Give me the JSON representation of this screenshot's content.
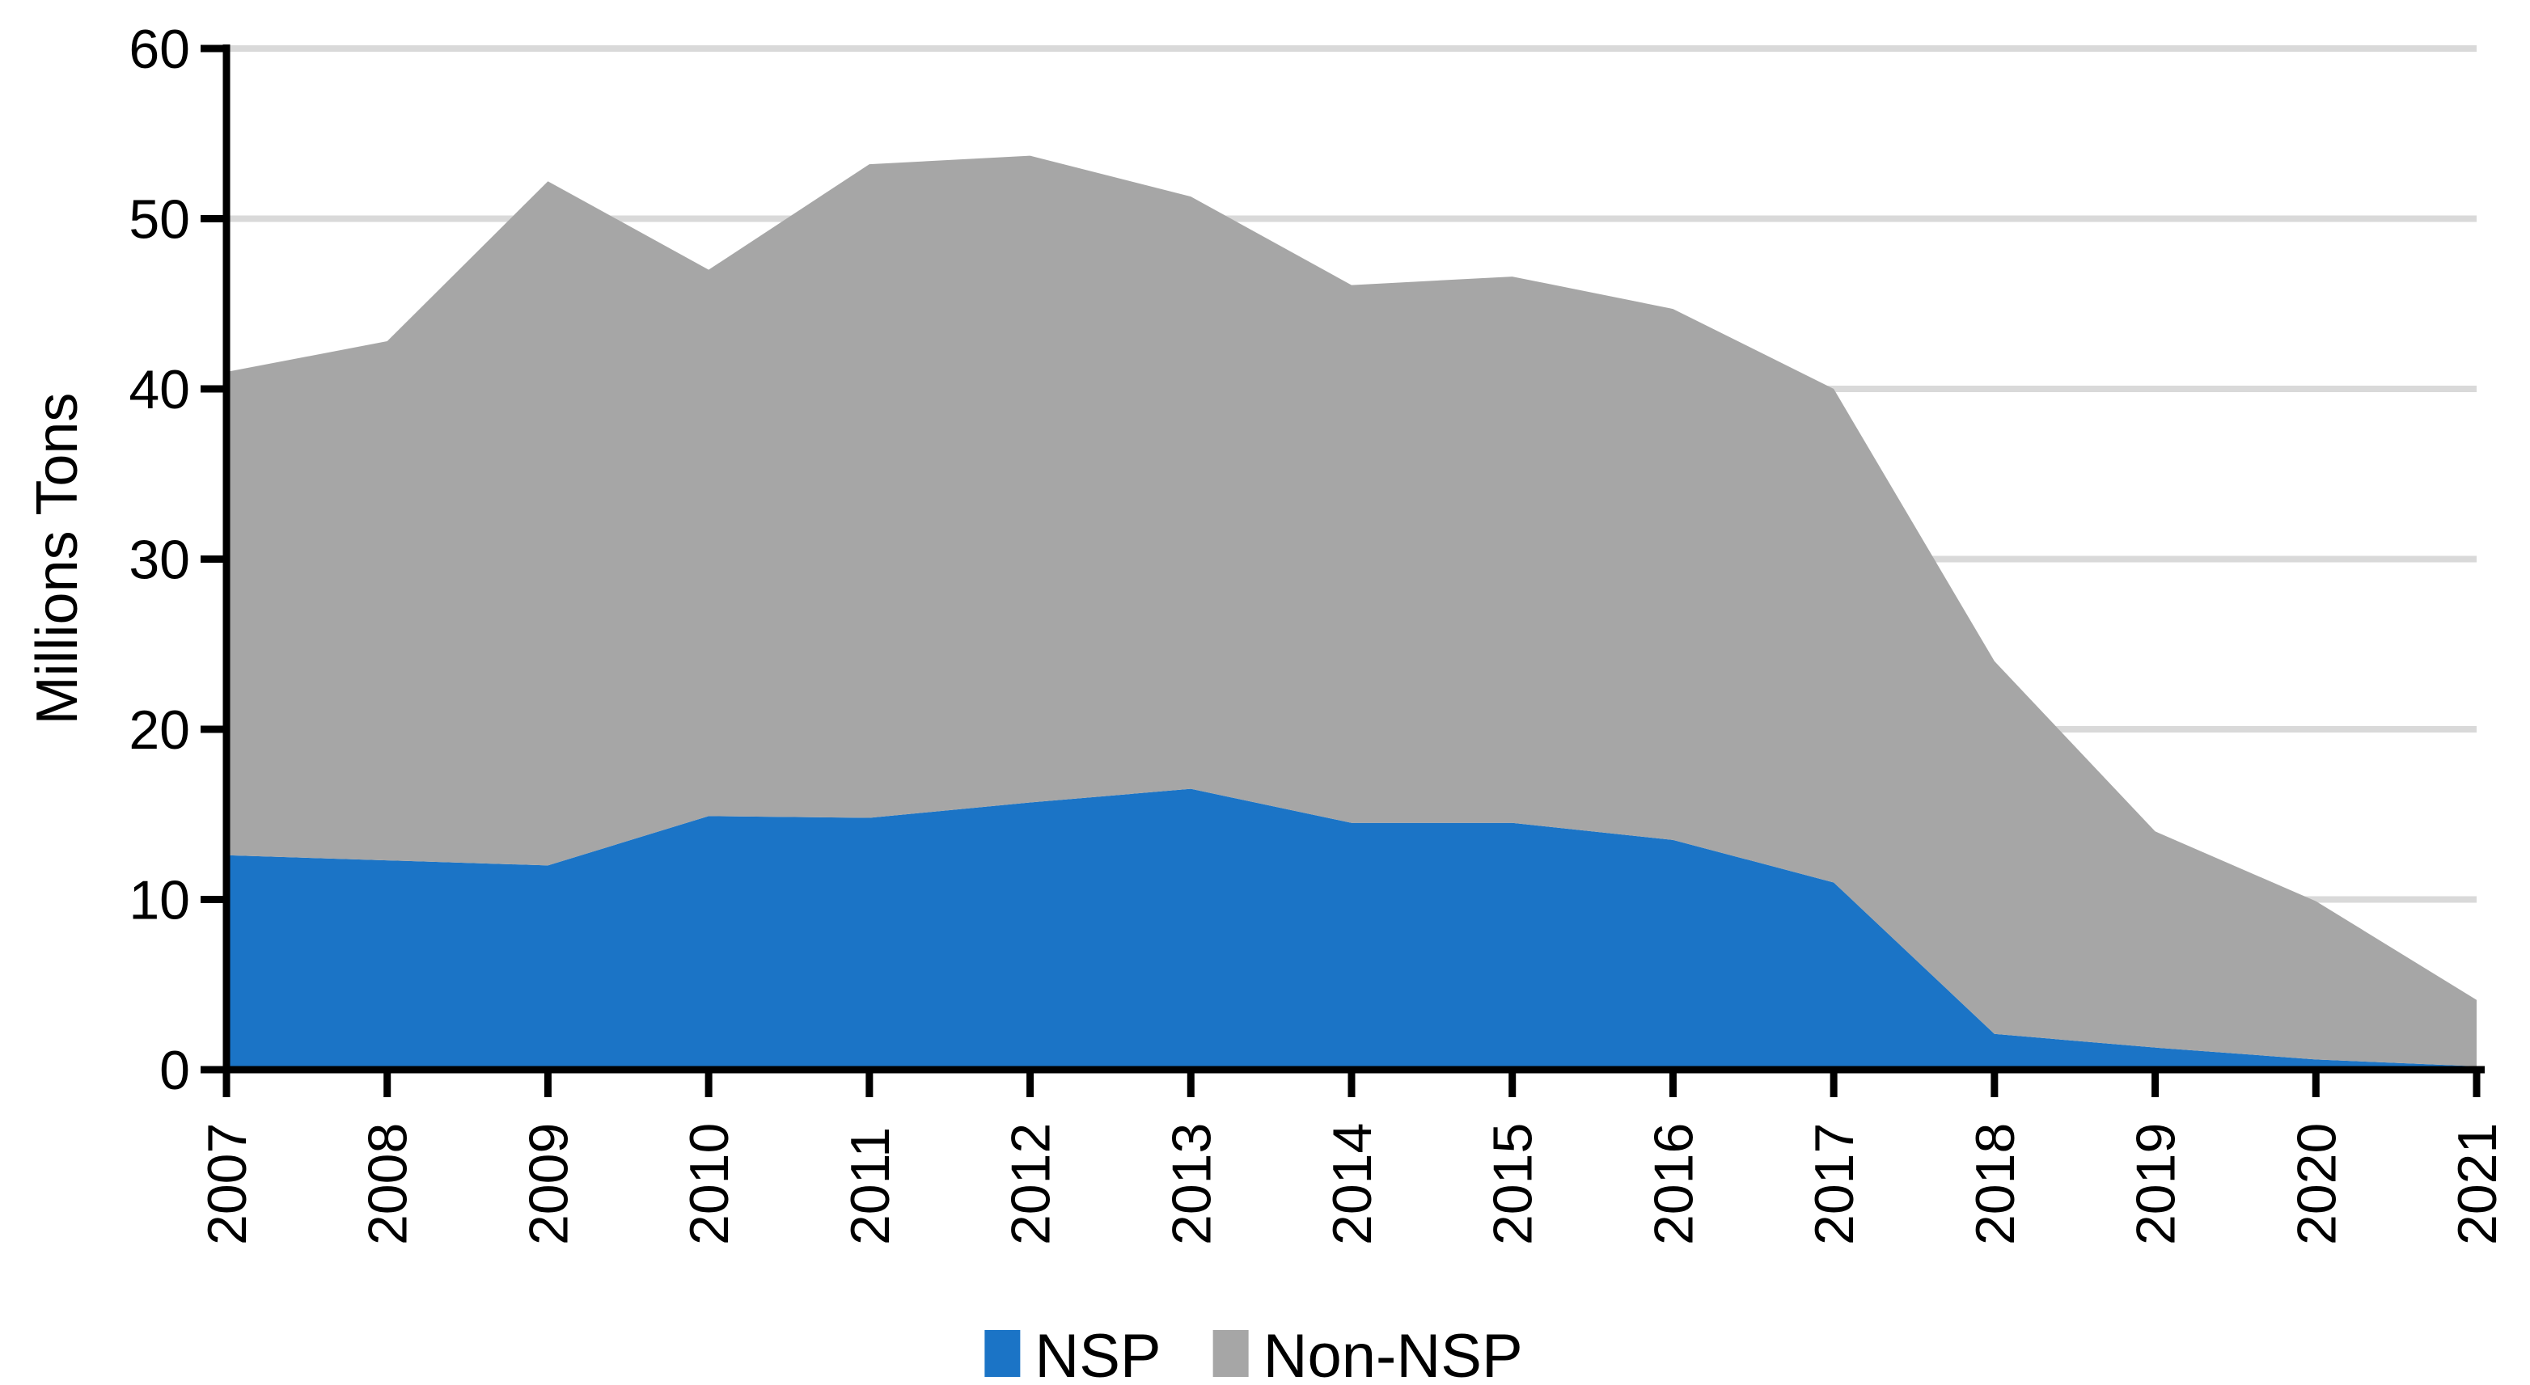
{
  "y_axis": {
    "label": "Millions Tons",
    "ticks": [
      0,
      10,
      20,
      30,
      40,
      50,
      60
    ],
    "min": 0,
    "max": 60
  },
  "x_axis": {
    "categories": [
      "2007",
      "2008",
      "2009",
      "2010",
      "2011",
      "2012",
      "2013",
      "2014",
      "2015",
      "2016",
      "2017",
      "2018",
      "2019",
      "2020",
      "2021"
    ]
  },
  "legend": {
    "position": "bottom",
    "items": [
      {
        "label": "NSP",
        "color": "#1B74C6"
      },
      {
        "label": "Non-NSP",
        "color": "#A6A6A6"
      }
    ]
  },
  "colors": {
    "nsp_blue": "#1B74C6",
    "non_nsp_gray": "#A6A6A6",
    "gridline": "#D9D9D9",
    "axis": "#000000",
    "background": "#FFFFFF"
  },
  "chart_data": {
    "type": "area",
    "stacked": true,
    "title": "",
    "xlabel": "",
    "ylabel": "Millions Tons",
    "ylim": [
      0,
      60
    ],
    "grid": "horizontal",
    "legend_position": "bottom",
    "categories": [
      "2007",
      "2008",
      "2009",
      "2010",
      "2011",
      "2012",
      "2013",
      "2014",
      "2015",
      "2016",
      "2017",
      "2018",
      "2019",
      "2020",
      "2021"
    ],
    "series": [
      {
        "name": "NSP",
        "color": "#1B74C6",
        "values": [
          12.6,
          12.3,
          12.0,
          14.9,
          14.8,
          15.7,
          16.5,
          14.5,
          14.5,
          13.5,
          11.0,
          2.1,
          1.3,
          0.6,
          0.2
        ]
      },
      {
        "name": "Non-NSP",
        "color": "#A6A6A6",
        "values": [
          28.4,
          30.5,
          40.2,
          32.1,
          38.4,
          38.0,
          34.8,
          31.6,
          32.1,
          31.2,
          29.0,
          21.9,
          12.7,
          9.3,
          3.9
        ]
      }
    ],
    "totals": [
      41.0,
      42.8,
      52.2,
      47.0,
      53.2,
      53.7,
      51.3,
      46.1,
      46.6,
      44.7,
      40.0,
      24.0,
      14.0,
      9.9,
      4.1
    ]
  }
}
